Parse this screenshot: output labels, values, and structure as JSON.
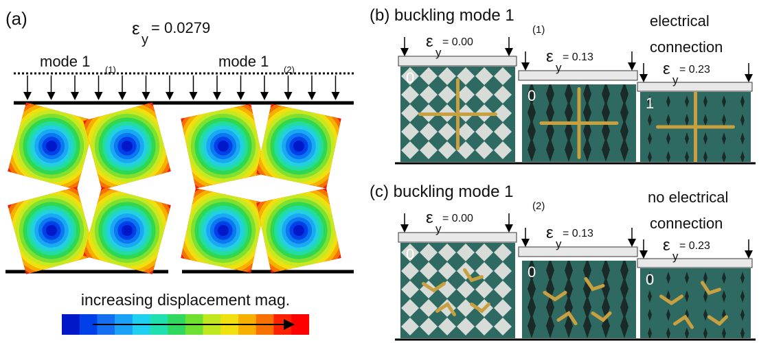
{
  "panel_a": {
    "label": "(a)",
    "strain": {
      "symbol": "ε",
      "sub": "y",
      "value": "= 0.0279"
    },
    "modes": [
      {
        "text": "mode 1",
        "sub": "(1)"
      },
      {
        "text": "mode 1",
        "sub": "(2)"
      }
    ],
    "colorbar_label": "increasing displacement mag."
  },
  "panel_b": {
    "label": "(b) buckling mode 1",
    "sub": "(1)",
    "note": [
      "electrical",
      "connection"
    ],
    "photos": [
      {
        "strain": {
          "symbol": "ε",
          "sub": "y",
          "value": "= 0.00"
        },
        "index": "0"
      },
      {
        "strain": {
          "symbol": "ε",
          "sub": "y",
          "value": "= 0.13"
        },
        "index": "0"
      },
      {
        "strain": {
          "symbol": "ε",
          "sub": "y",
          "value": "= 0.23"
        },
        "index": "1"
      }
    ]
  },
  "panel_c": {
    "label": "(c) buckling mode 1",
    "sub": "(2)",
    "note": [
      "no electrical",
      "connection"
    ],
    "photos": [
      {
        "strain": {
          "symbol": "ε",
          "sub": "y",
          "value": "= 0.00"
        },
        "index": "0"
      },
      {
        "strain": {
          "symbol": "ε",
          "sub": "y",
          "value": "= 0.13"
        },
        "index": "0"
      },
      {
        "strain": {
          "symbol": "ε",
          "sub": "y",
          "value": "= 0.23"
        },
        "index": "0"
      }
    ]
  }
}
